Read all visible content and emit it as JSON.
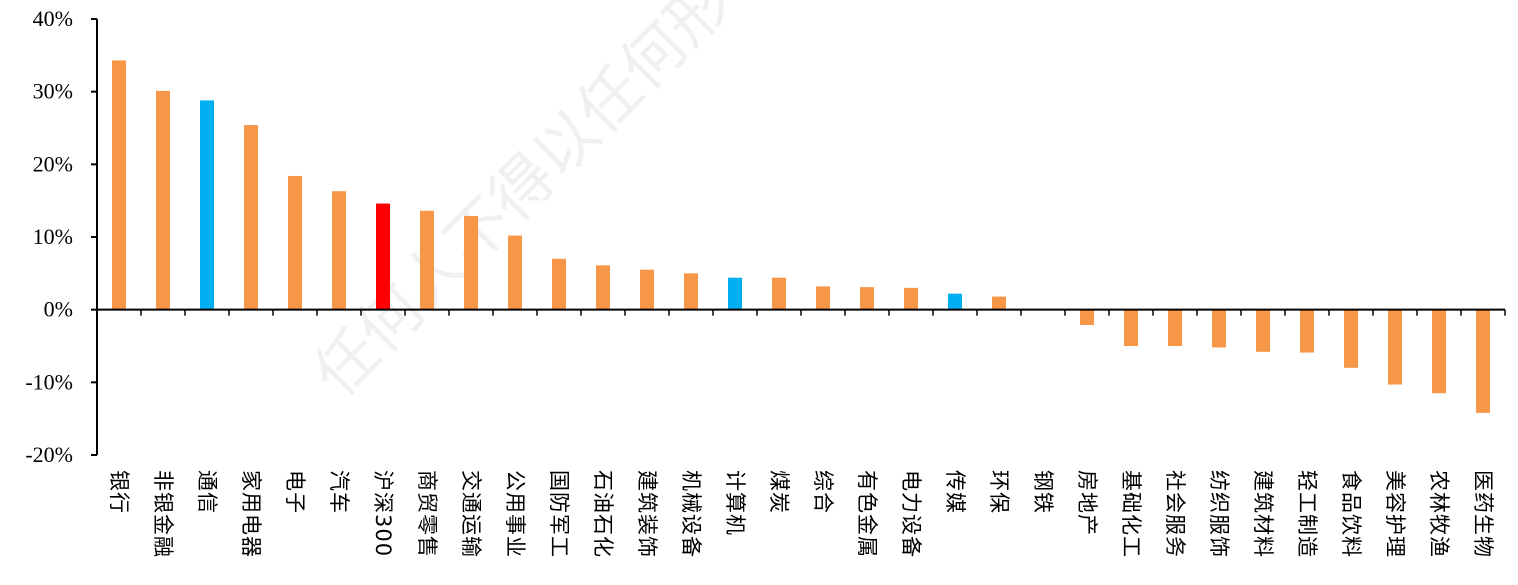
{
  "chart_data": {
    "type": "bar",
    "title": "",
    "xlabel": "",
    "ylabel": "",
    "ylim": [
      -20,
      40
    ],
    "ytick_step": 10,
    "ytick_labels": [
      "40%",
      "30%",
      "20%",
      "10%",
      "0%",
      "-10%",
      "-20%"
    ],
    "categories": [
      "银行",
      "非银金融",
      "通信",
      "家用电器",
      "电子",
      "汽车",
      "沪深300",
      "商贸零售",
      "交通运输",
      "公用事业",
      "国防军工",
      "石油石化",
      "建筑装饰",
      "机械设备",
      "计算机",
      "煤炭",
      "综合",
      "有色金属",
      "电力设备",
      "传媒",
      "环保",
      "钢铁",
      "房地产",
      "基础化工",
      "社会服务",
      "纺织服饰",
      "建筑材料",
      "轻工制造",
      "食品饮料",
      "美容护理",
      "农林牧渔",
      "医药生物"
    ],
    "values": [
      34.3,
      30.1,
      28.8,
      25.4,
      18.4,
      16.3,
      14.6,
      13.6,
      12.9,
      10.2,
      7.0,
      6.1,
      5.5,
      5.0,
      4.4,
      4.4,
      3.2,
      3.1,
      3.0,
      2.2,
      1.8,
      0.0,
      -2.1,
      -5.0,
      -5.0,
      -5.2,
      -5.8,
      -5.9,
      -8.0,
      -10.3,
      -11.5,
      -14.2
    ],
    "colors": {
      "default": "#F79646",
      "highlight": "#00B0F0",
      "benchmark": "#FF0000",
      "axis": "#000000"
    },
    "highlight_categories": [
      "通信",
      "计算机",
      "传媒"
    ],
    "benchmark_category": "沪深300",
    "grid": false,
    "legend": "none"
  },
  "watermark": "任何人不得以任何形"
}
